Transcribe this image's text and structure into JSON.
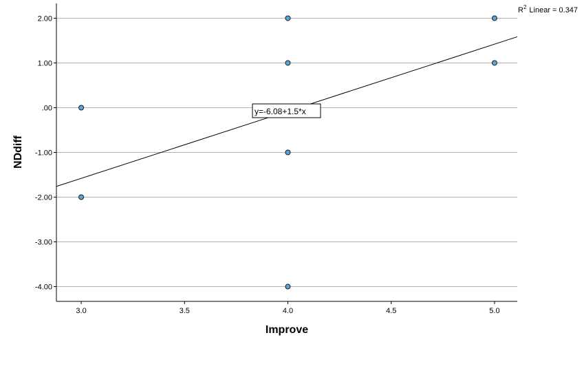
{
  "chart_data": {
    "type": "scatter",
    "xlabel": "Improve",
    "ylabel": "NDdiff",
    "xlim": [
      2.88,
      5.11
    ],
    "ylim": [
      -4.33,
      2.33
    ],
    "x_ticks": [
      3.0,
      3.5,
      4.0,
      4.5,
      5.0
    ],
    "x_tick_labels": [
      "3.0",
      "3.5",
      "4.0",
      "4.5",
      "5.0"
    ],
    "y_ticks": [
      2,
      1,
      0,
      -1,
      -2,
      -3,
      -4
    ],
    "y_tick_labels": [
      "2.00",
      "1.00",
      ".00",
      "-1.00",
      "-2.00",
      "-3.00",
      "-4.00"
    ],
    "grid": "horizontal",
    "points": [
      {
        "x": 3.0,
        "y": 0.0
      },
      {
        "x": 3.0,
        "y": -2.0
      },
      {
        "x": 4.0,
        "y": 2.0
      },
      {
        "x": 4.0,
        "y": 1.0
      },
      {
        "x": 4.0,
        "y": -1.0
      },
      {
        "x": 4.0,
        "y": -4.0
      },
      {
        "x": 5.0,
        "y": 2.0
      },
      {
        "x": 5.0,
        "y": 1.0
      }
    ],
    "fit_line": {
      "intercept": -6.08,
      "slope": 1.5
    },
    "fit_equation_label": "y=-6.08+1.5*x",
    "r2_prefix": "R",
    "r2_superscript": "2",
    "r2_label": "Linear = 0.347",
    "colors": {
      "point_fill": "#5aa5d8",
      "point_stroke": "#1a1a1a",
      "grid": "#b4b4b4",
      "axis": "#000000",
      "line": "#000000"
    }
  }
}
